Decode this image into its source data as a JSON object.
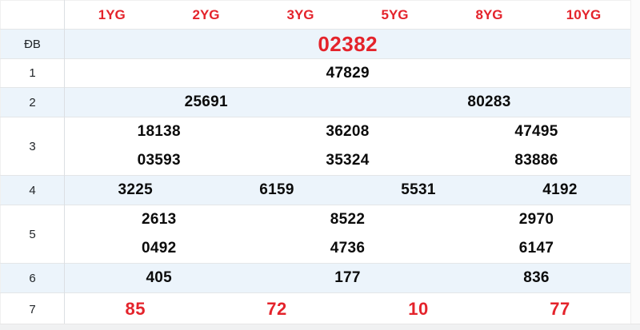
{
  "colors": {
    "accent_red": "#e4232b",
    "stripe_blue": "#ecf4fb",
    "border_gray": "#e4e6e8",
    "text_dark": "#212529"
  },
  "table": {
    "corner_label": "",
    "headers": [
      "1YG",
      "2YG",
      "3YG",
      "5YG",
      "8YG",
      "10YG"
    ],
    "rows": [
      {
        "label": "ĐB",
        "cells": [
          [
            "02382"
          ]
        ]
      },
      {
        "label": "1",
        "cells": [
          [
            "47829"
          ]
        ]
      },
      {
        "label": "2",
        "cells": [
          [
            "25691"
          ],
          [
            "80283"
          ]
        ]
      },
      {
        "label": "3",
        "cells": [
          [
            "18138",
            "03593"
          ],
          [
            "36208",
            "35324"
          ],
          [
            "47495",
            "83886"
          ]
        ]
      },
      {
        "label": "4",
        "cells": [
          [
            "3225"
          ],
          [
            "6159"
          ],
          [
            "5531"
          ],
          [
            "4192"
          ]
        ]
      },
      {
        "label": "5",
        "cells": [
          [
            "2613",
            "0492"
          ],
          [
            "8522",
            "4736"
          ],
          [
            "2970",
            "6147"
          ]
        ]
      },
      {
        "label": "6",
        "cells": [
          [
            "405"
          ],
          [
            "177"
          ],
          [
            "836"
          ]
        ]
      },
      {
        "label": "7",
        "cells": [
          [
            "85"
          ],
          [
            "72"
          ],
          [
            "10"
          ],
          [
            "77"
          ]
        ]
      }
    ]
  }
}
